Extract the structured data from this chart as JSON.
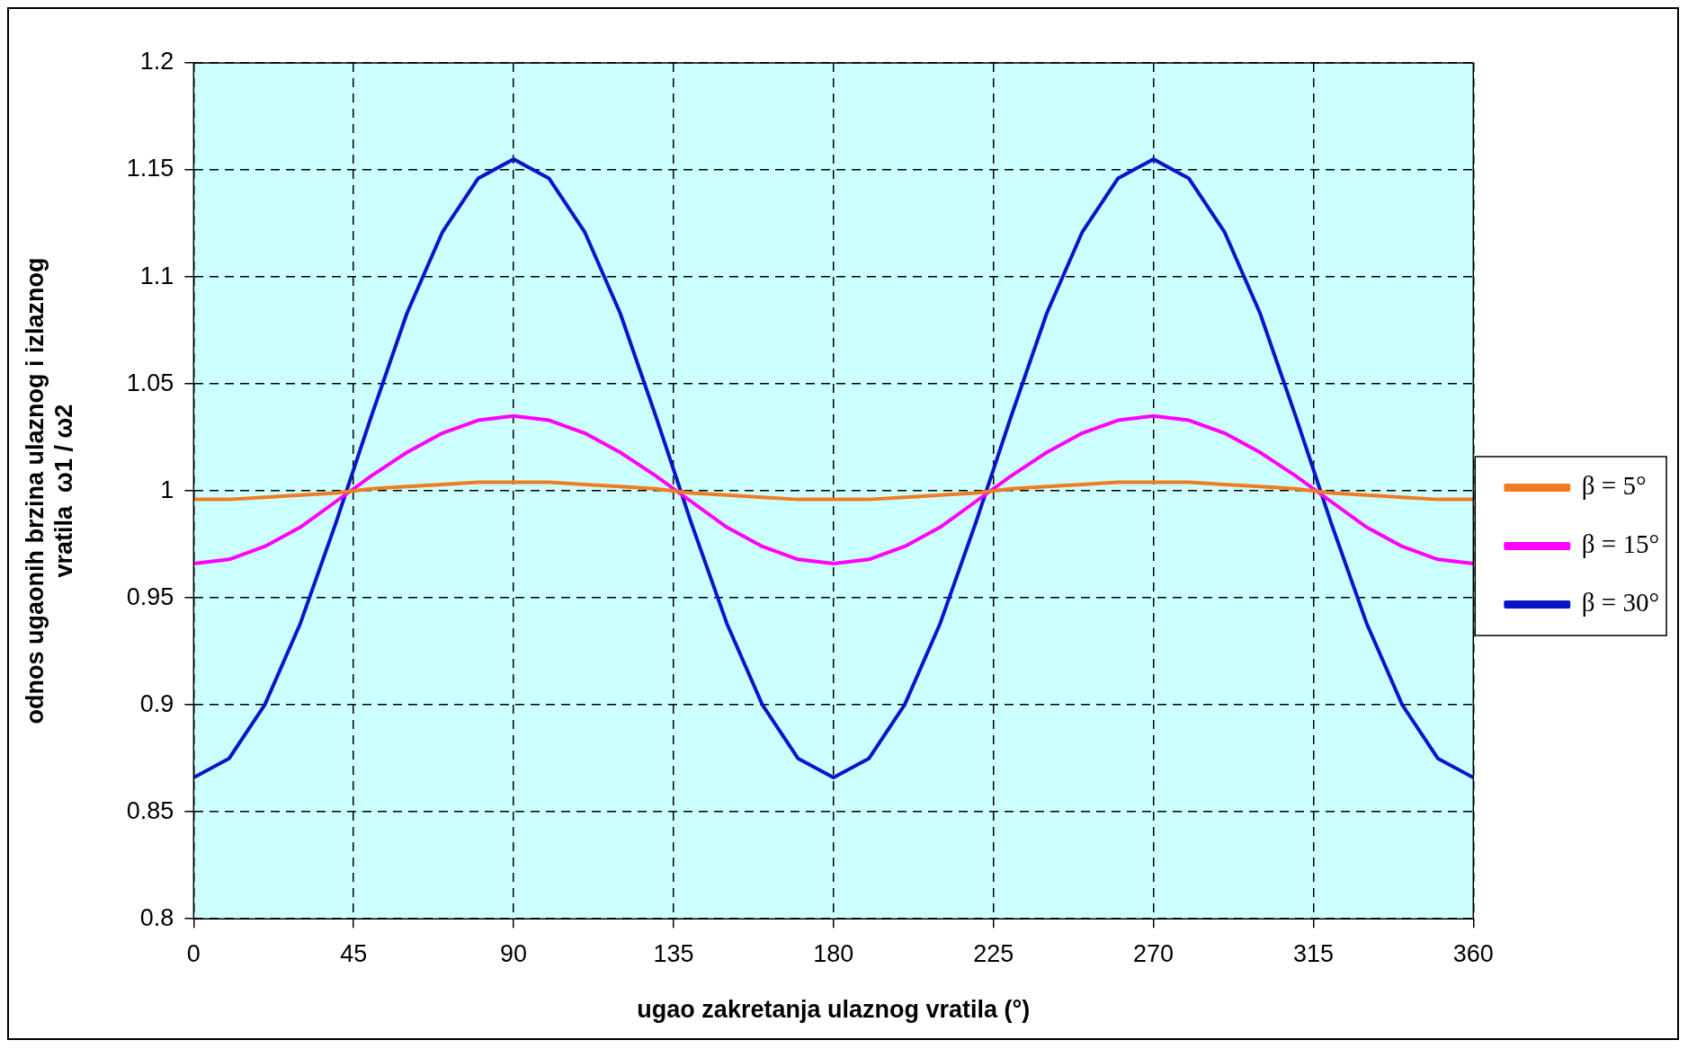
{
  "chart_data": {
    "type": "line",
    "xlabel": "ugao zakretanja ulaznog vratila (°)",
    "ylabel": "odnos ugaonih brzina ulaznog i izlaznog\nvratila  ω1 / ω2",
    "x": [
      0,
      10,
      20,
      30,
      40,
      50,
      60,
      70,
      80,
      90,
      100,
      110,
      120,
      130,
      140,
      150,
      160,
      170,
      180,
      190,
      200,
      210,
      220,
      230,
      240,
      250,
      260,
      270,
      280,
      290,
      300,
      310,
      320,
      330,
      340,
      350,
      360
    ],
    "series": [
      {
        "name": "β = 5°",
        "color": "#f07c22",
        "values": [
          0.996,
          0.996,
          0.997,
          0.998,
          0.999,
          1.001,
          1.002,
          1.003,
          1.004,
          1.004,
          1.004,
          1.003,
          1.002,
          1.001,
          0.999,
          0.998,
          0.997,
          0.996,
          0.996,
          0.996,
          0.997,
          0.998,
          0.999,
          1.001,
          1.002,
          1.003,
          1.004,
          1.004,
          1.004,
          1.003,
          1.002,
          1.001,
          0.999,
          0.998,
          0.997,
          0.996,
          0.996
        ]
      },
      {
        "name": "β = 15°",
        "color": "#ff00ff",
        "values": [
          0.966,
          0.968,
          0.974,
          0.983,
          0.995,
          1.007,
          1.018,
          1.027,
          1.033,
          1.035,
          1.033,
          1.027,
          1.018,
          1.007,
          0.995,
          0.983,
          0.974,
          0.968,
          0.966,
          0.968,
          0.974,
          0.983,
          0.995,
          1.007,
          1.018,
          1.027,
          1.033,
          1.035,
          1.033,
          1.027,
          1.018,
          1.007,
          0.995,
          0.983,
          0.974,
          0.968,
          0.966
        ]
      },
      {
        "name": "β = 30°",
        "color": "#0a14c8",
        "values": [
          0.866,
          0.875,
          0.9,
          0.938,
          0.985,
          1.035,
          1.083,
          1.121,
          1.146,
          1.155,
          1.146,
          1.121,
          1.083,
          1.035,
          0.985,
          0.938,
          0.9,
          0.875,
          0.866,
          0.875,
          0.9,
          0.938,
          0.985,
          1.035,
          1.083,
          1.121,
          1.146,
          1.155,
          1.146,
          1.121,
          1.083,
          1.035,
          0.985,
          0.938,
          0.9,
          0.875,
          0.866
        ]
      }
    ],
    "xlim": [
      0,
      360
    ],
    "xticks": [
      0,
      45,
      90,
      135,
      180,
      225,
      270,
      315,
      360
    ],
    "ylim": [
      0.8,
      1.2
    ],
    "yticks": [
      0.8,
      0.85,
      0.9,
      0.95,
      1,
      1.05,
      1.1,
      1.15,
      1.2
    ],
    "grid": true,
    "legend": "right",
    "marker": "none",
    "line_style": "solid"
  }
}
